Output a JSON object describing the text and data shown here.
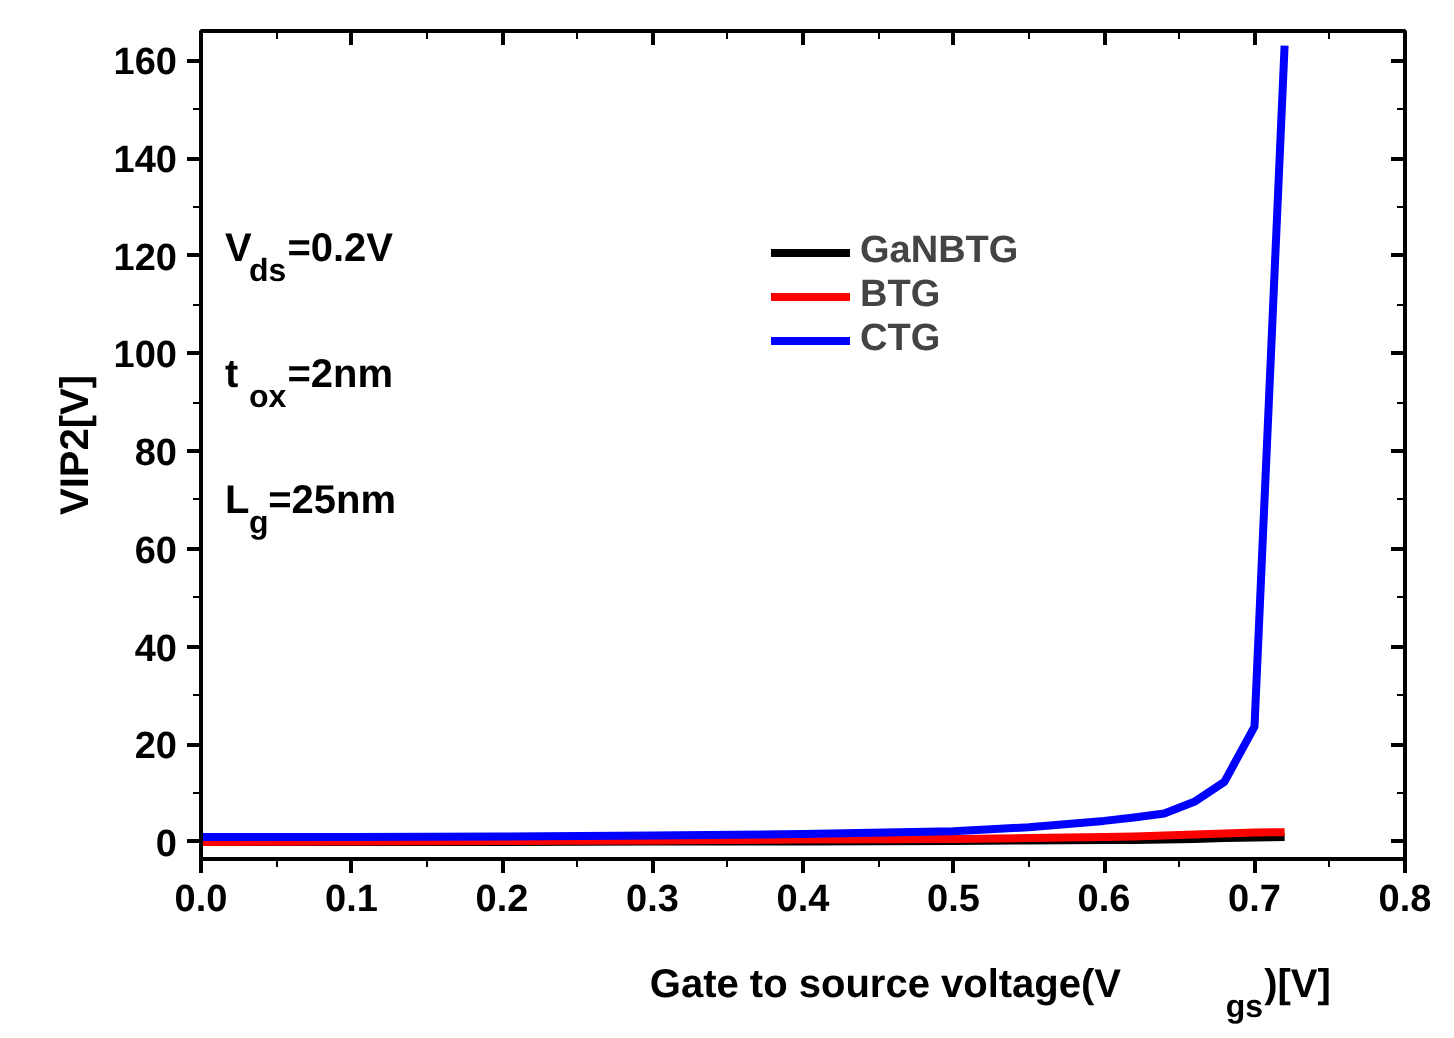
{
  "chart_data": {
    "type": "line",
    "xlabel": "Gate to source voltage(V$_{gs}$)[V]",
    "ylabel": "VIP2[V]",
    "xlim": [
      0.0,
      0.8
    ],
    "xticks": [
      {
        "value": 0.0,
        "label": "0.0"
      },
      0.1,
      0.2,
      0.3,
      0.4,
      0.5,
      0.6,
      0.7,
      0.8
    ],
    "ylim": [
      -3.5,
      166
    ],
    "yticks": [
      0,
      20,
      40,
      60,
      80,
      100,
      120,
      140,
      160
    ],
    "x": [
      0.0,
      0.1,
      0.2,
      0.3,
      0.4,
      0.5,
      0.55,
      0.6,
      0.62,
      0.64,
      0.66,
      0.68,
      0.7,
      0.72
    ],
    "series": [
      {
        "name": "GaNBTG",
        "color": "#000000",
        "values": [
          0.0,
          0.0,
          0.0,
          0.1,
          0.1,
          0.2,
          0.3,
          0.4,
          0.4,
          0.5,
          0.6,
          0.8,
          0.9,
          1.0
        ]
      },
      {
        "name": "BTG",
        "color": "#ff0000",
        "values": [
          0.0,
          0.1,
          0.2,
          0.3,
          0.5,
          0.6,
          0.8,
          1.0,
          1.1,
          1.3,
          1.5,
          1.7,
          1.9,
          2.0
        ]
      },
      {
        "name": "CTG",
        "color": "#0000ff",
        "values": [
          1.0,
          1.0,
          1.1,
          1.3,
          1.6,
          2.2,
          3.0,
          4.3,
          5.0,
          5.8,
          8.2,
          12.3,
          23.6,
          163
        ]
      }
    ],
    "annotations": [
      "V$_{ds}$=0.2V",
      "t$_{ox}$=2nm",
      "L$_{g}$=25nm"
    ],
    "legend": "top right",
    "grid": false,
    "marker": "none",
    "line_style": "solid"
  }
}
